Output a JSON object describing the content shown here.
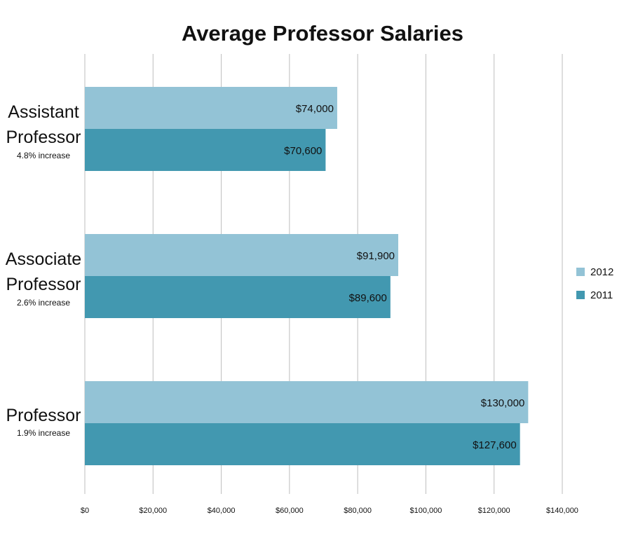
{
  "chart_data": {
    "type": "bar",
    "orientation": "horizontal",
    "title": "Average Professor Salaries",
    "xlabel": "",
    "ylabel": "",
    "xlim": [
      0,
      140000
    ],
    "x_ticks": [
      "$0",
      "$20,000",
      "$40,000",
      "$60,000",
      "$80,000",
      "$100,000",
      "$120,000",
      "$140,000"
    ],
    "x_tick_values": [
      0,
      20000,
      40000,
      60000,
      80000,
      100000,
      120000,
      140000
    ],
    "grid": true,
    "legend_position": "right",
    "categories": [
      {
        "lines": [
          "Assistant",
          "Professor"
        ],
        "note": "4.8% increase"
      },
      {
        "lines": [
          "Associate",
          "Professor"
        ],
        "note": "2.6% increase"
      },
      {
        "lines": [
          "Professor"
        ],
        "note": "1.9% increase"
      }
    ],
    "series": [
      {
        "name": "2012",
        "color": "#93c3d6",
        "values": [
          74000,
          91900,
          130000
        ],
        "labels": [
          "$74,000",
          "$91,900",
          "$130,000"
        ]
      },
      {
        "name": "2011",
        "color": "#4298b0",
        "values": [
          70600,
          89600,
          127600
        ],
        "labels": [
          "$70,600",
          "$89,600",
          "$127,600"
        ]
      }
    ]
  }
}
